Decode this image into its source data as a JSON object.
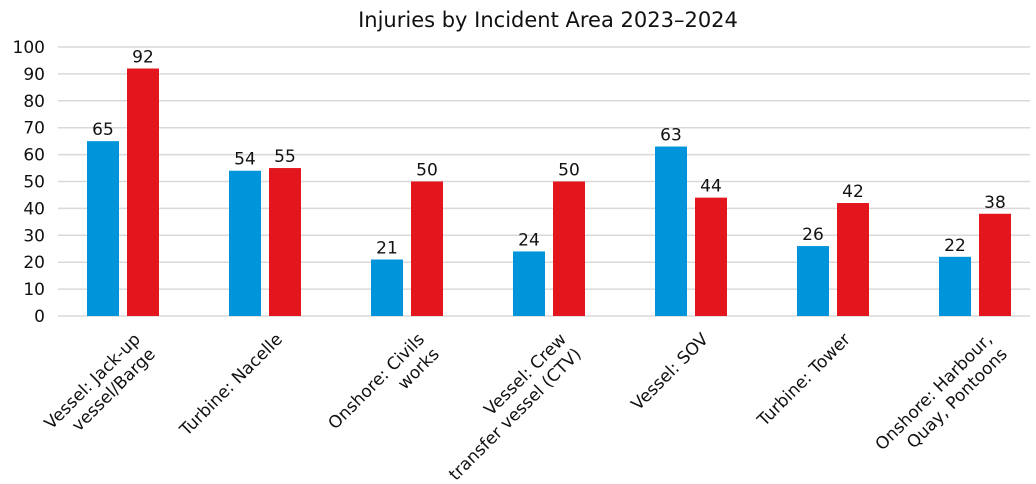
{
  "chart_data": {
    "type": "bar",
    "title": "Injuries by Incident Area 2023–2024",
    "categories": [
      [
        "Vessel: Jack-up",
        "vessel/Barge"
      ],
      [
        "Turbine: Nacelle"
      ],
      [
        "Onshore: Civils",
        "works"
      ],
      [
        "Vessel: Crew",
        "transfer vessel (CTV)"
      ],
      [
        "Vessel: SOV"
      ],
      [
        "Turbine: Tower"
      ],
      [
        "Onshore: Harbour,",
        "Quay, Pontoons"
      ]
    ],
    "series": [
      {
        "color": "#0095da",
        "values": [
          65,
          54,
          21,
          24,
          63,
          26,
          22
        ]
      },
      {
        "color": "#e3161e",
        "values": [
          92,
          55,
          50,
          50,
          44,
          42,
          38
        ]
      }
    ],
    "ylim": [
      0,
      100
    ],
    "yticks": [
      0,
      10,
      20,
      30,
      40,
      50,
      60,
      70,
      80,
      90,
      100
    ],
    "grid": true
  }
}
